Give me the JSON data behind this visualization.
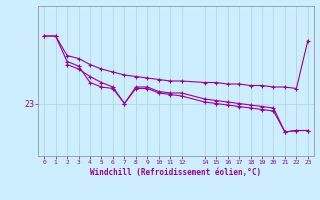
{
  "xlabel": "Windchill (Refroidissement éolien,°C)",
  "bg_color": "#cceeff",
  "line_color": "#990099",
  "x_ticks": [
    0,
    1,
    2,
    3,
    4,
    5,
    6,
    7,
    8,
    9,
    10,
    11,
    12,
    14,
    15,
    16,
    17,
    18,
    19,
    20,
    21,
    22,
    23
  ],
  "line1_x": [
    0,
    1,
    2,
    3,
    4,
    5,
    6,
    7,
    8,
    9,
    10,
    11,
    12,
    14,
    15,
    16,
    17,
    18,
    19,
    20,
    21,
    22,
    23
  ],
  "line1_y": [
    27.5,
    27.5,
    26.2,
    26.0,
    25.6,
    25.3,
    25.1,
    24.9,
    24.8,
    24.7,
    24.6,
    24.5,
    24.5,
    24.4,
    24.4,
    24.3,
    24.3,
    24.2,
    24.2,
    24.1,
    24.1,
    24.0,
    27.2
  ],
  "line2_x": [
    0,
    1,
    2,
    3,
    4,
    5,
    6,
    7,
    8,
    9,
    10,
    11,
    12,
    14,
    15,
    16,
    17,
    18,
    19,
    20,
    21,
    22,
    23
  ],
  "line2_y": [
    27.5,
    27.5,
    25.8,
    25.5,
    24.4,
    24.1,
    24.0,
    23.0,
    24.1,
    24.1,
    23.8,
    23.7,
    23.7,
    23.3,
    23.2,
    23.1,
    23.0,
    22.9,
    22.8,
    22.7,
    21.1,
    21.2,
    21.2
  ],
  "line3_x": [
    2,
    3,
    4,
    5,
    6,
    7,
    8,
    9,
    10,
    11,
    12,
    14,
    15,
    16,
    17,
    18,
    19,
    20,
    21,
    22,
    23
  ],
  "line3_y": [
    25.6,
    25.3,
    24.8,
    24.4,
    24.1,
    23.0,
    24.0,
    24.0,
    23.7,
    23.6,
    23.5,
    23.1,
    23.0,
    22.9,
    22.8,
    22.7,
    22.6,
    22.5,
    21.1,
    21.2,
    21.2
  ],
  "ytick_val": 23,
  "ylim": [
    19.5,
    29.5
  ],
  "xlim": [
    -0.5,
    23.5
  ]
}
